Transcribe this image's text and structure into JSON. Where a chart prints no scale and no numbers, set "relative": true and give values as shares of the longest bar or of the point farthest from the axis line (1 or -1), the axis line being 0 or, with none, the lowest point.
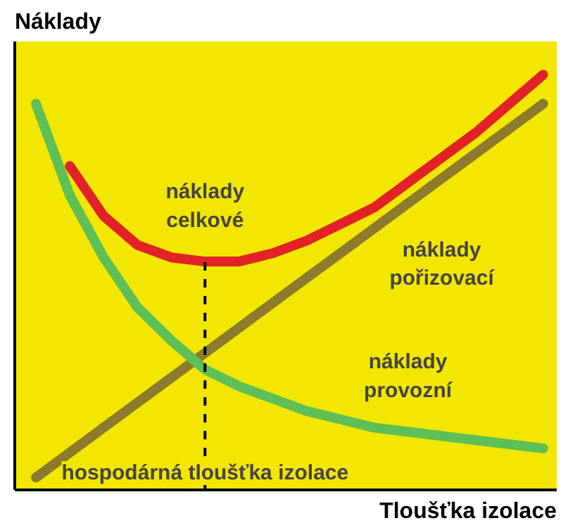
{
  "chart_data": {
    "type": "line",
    "relative": true,
    "xlabel": "Tloušťka izolace",
    "ylabel": "Náklady",
    "categories": [
      null,
      null,
      null,
      null,
      null,
      null,
      null,
      null,
      null,
      null,
      null,
      null,
      null,
      null,
      null,
      null
    ],
    "series": [
      {
        "name": "náklady celkové",
        "color": "#e32228",
        "values": [
          null,
          0.78,
          0.66,
          0.59,
          0.56,
          0.55,
          0.55,
          0.57,
          0.6,
          0.64,
          0.68,
          0.74,
          0.8,
          0.86,
          0.93,
          1
        ]
      },
      {
        "name": "náklady pořizovací",
        "color": "#8c7b2c",
        "values": [
          0.03,
          0.09,
          0.15,
          0.21,
          0.27,
          0.33,
          0.39,
          0.45,
          0.51,
          0.57,
          0.63,
          0.69,
          0.75,
          0.81,
          0.87,
          0.93
        ]
      },
      {
        "name": "náklady provozní",
        "color": "#5dbf55",
        "values": [
          0.93,
          0.71,
          0.56,
          0.44,
          0.36,
          0.29,
          0.25,
          0.22,
          0.19,
          0.17,
          0.15,
          0.14,
          0.13,
          0.12,
          0.11,
          0.1
        ]
      }
    ],
    "annotations": [
      "hospodárná tloušťka izolace"
    ],
    "legend": false,
    "marker": "none",
    "line_style": "solid"
  }
}
